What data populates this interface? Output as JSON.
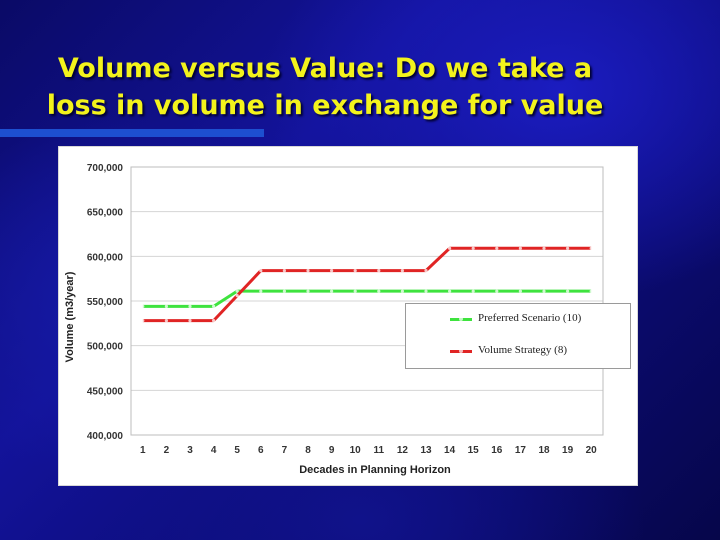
{
  "slide": {
    "title_line1": "Volume versus Value:  Do we take a",
    "title_line2": "loss in volume in exchange for value"
  },
  "chart_data": {
    "type": "line",
    "xlabel": "Decades in Planning Horizon",
    "ylabel": "Volume (m3/year)",
    "ylim": [
      400000,
      700000
    ],
    "yticks": [
      400000,
      450000,
      500000,
      550000,
      600000,
      650000,
      700000
    ],
    "ytick_labels": [
      "400,000",
      "450,000",
      "500,000",
      "550,000",
      "600,000",
      "650,000",
      "700,000"
    ],
    "categories": [
      "1",
      "2",
      "3",
      "4",
      "5",
      "6",
      "7",
      "8",
      "9",
      "10",
      "11",
      "12",
      "13",
      "14",
      "15",
      "16",
      "17",
      "18",
      "19",
      "20"
    ],
    "grid": "horizontal",
    "legend_position": "right-middle",
    "series": [
      {
        "name": "Preferred Scenario (10)",
        "color": "#3ee33e",
        "values": [
          544000,
          544000,
          544000,
          544000,
          561000,
          561000,
          561000,
          561000,
          561000,
          561000,
          561000,
          561000,
          561000,
          561000,
          561000,
          561000,
          561000,
          561000,
          561000,
          561000
        ]
      },
      {
        "name": "Volume Strategy (8)",
        "color": "#e02424",
        "values": [
          528000,
          528000,
          528000,
          528000,
          556000,
          584000,
          584000,
          584000,
          584000,
          584000,
          584000,
          584000,
          584000,
          609000,
          609000,
          609000,
          609000,
          609000,
          609000,
          609000
        ]
      }
    ]
  }
}
